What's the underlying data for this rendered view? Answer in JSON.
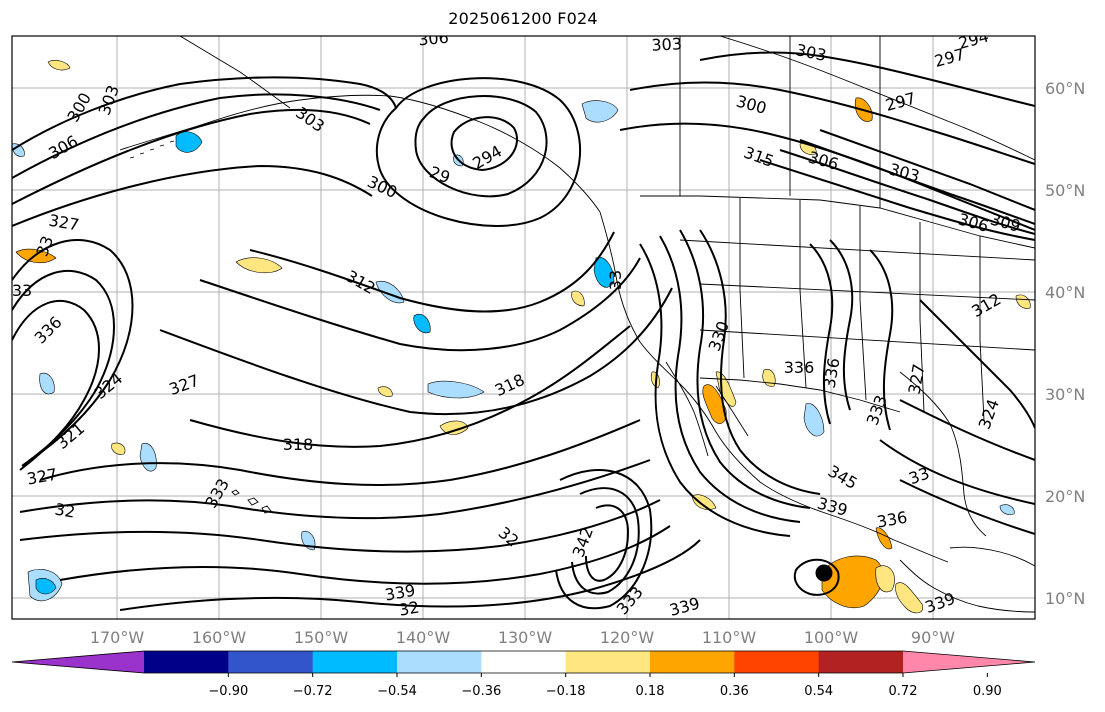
{
  "title": "2025061200 F024",
  "latitude_labels": [
    "60°N",
    "50°N",
    "40°N",
    "30°N",
    "20°N",
    "10°N"
  ],
  "longitude_labels": [
    "170°W",
    "160°W",
    "150°W",
    "140°W",
    "130°W",
    "120°W",
    "110°W",
    "100°W",
    "90°W"
  ],
  "colorbar": {
    "colors": [
      "#9933cc",
      "#000088",
      "#3355cc",
      "#00bbff",
      "#aaddff",
      "#ffffff",
      "#ffe680",
      "#ffa500",
      "#ff4400",
      "#b22222",
      "#ff88aa"
    ],
    "tick_labels": [
      "−0.90",
      "−0.72",
      "−0.54",
      "−0.36",
      "−0.18",
      "0.18",
      "0.36",
      "0.54",
      "0.72",
      "0.90"
    ]
  },
  "contour_labels": [
    "306",
    "303",
    "303",
    "294",
    "297",
    "300",
    "303",
    "306",
    "303",
    "297",
    "300",
    "315",
    "306",
    "303",
    "306",
    "300",
    "29",
    "294",
    "327",
    "33",
    "33",
    "312",
    "309",
    "336",
    "312",
    "33",
    "330",
    "336",
    "324",
    "327",
    "318",
    "318",
    "321",
    "336",
    "333",
    "327",
    "327",
    "33",
    "324",
    "32",
    "333",
    "32",
    "342",
    "345",
    "339",
    "336",
    "339",
    "32",
    "333",
    "339"
  ],
  "storm_marker": "storm-center"
}
